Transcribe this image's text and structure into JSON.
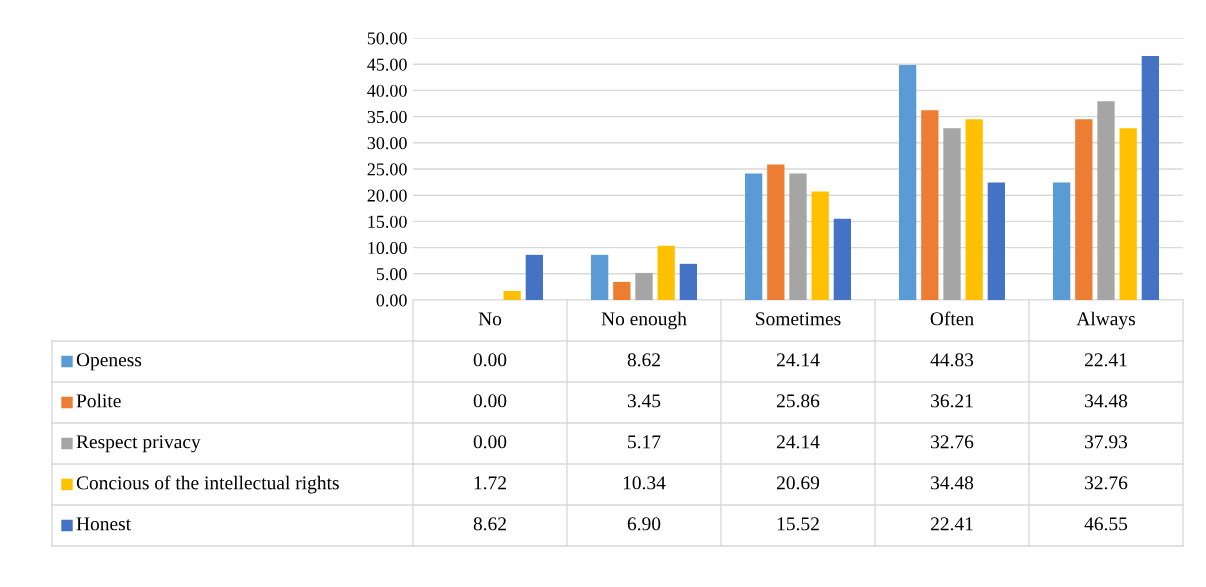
{
  "chart_data": {
    "type": "bar",
    "categories": [
      "No",
      "No enough",
      "Sometimes",
      "Often",
      "Always"
    ],
    "series": [
      {
        "name": "Openess",
        "color": "#5b9bd5",
        "values": [
          0.0,
          8.62,
          24.14,
          44.83,
          22.41
        ],
        "value_labels": [
          "0.00",
          "8.62",
          "24.14",
          "44.83",
          "22.41"
        ]
      },
      {
        "name": "Polite",
        "color": "#ed7d31",
        "values": [
          0.0,
          3.45,
          25.86,
          36.21,
          34.48
        ],
        "value_labels": [
          "0.00",
          "3.45",
          "25.86",
          "36.21",
          "34.48"
        ]
      },
      {
        "name": "Respect privacy",
        "color": "#a5a5a5",
        "values": [
          0.0,
          5.17,
          24.14,
          32.76,
          37.93
        ],
        "value_labels": [
          "0.00",
          "5.17",
          "24.14",
          "32.76",
          "37.93"
        ]
      },
      {
        "name": "Concious of the intellectual rights",
        "color": "#ffc000",
        "values": [
          1.72,
          10.34,
          20.69,
          34.48,
          32.76
        ],
        "value_labels": [
          "1.72",
          "10.34",
          "20.69",
          "34.48",
          "32.76"
        ]
      },
      {
        "name": "Honest",
        "color": "#4472c4",
        "values": [
          8.62,
          6.9,
          15.52,
          22.41,
          46.55
        ],
        "value_labels": [
          "8.62",
          "6.90",
          "15.52",
          "22.41",
          "46.55"
        ]
      }
    ],
    "ylim": [
      0,
      50
    ],
    "yticks": [
      {
        "value": 0,
        "label": "0.00"
      },
      {
        "value": 5,
        "label": "5.00"
      },
      {
        "value": 10,
        "label": "10.00"
      },
      {
        "value": 15,
        "label": "15.00"
      },
      {
        "value": 20,
        "label": "20.00"
      },
      {
        "value": 25,
        "label": "25.00"
      },
      {
        "value": 30,
        "label": "30.00"
      },
      {
        "value": 35,
        "label": "35.00"
      },
      {
        "value": 40,
        "label": "40.00"
      },
      {
        "value": 45,
        "label": "45.00"
      },
      {
        "value": 50,
        "label": "50.00"
      }
    ],
    "grid": "y",
    "legend": "bottom"
  }
}
